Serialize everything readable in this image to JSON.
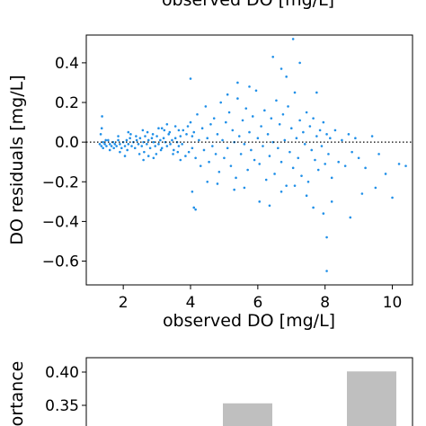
{
  "chart_data": [
    {
      "type": "scatter",
      "top_cut_label": "observed DO [mg/L]",
      "xlabel": "observed DO [mg/L]",
      "ylabel": "DO residuals [mg/L]",
      "xlim": [
        0.9,
        10.6
      ],
      "ylim": [
        -0.72,
        0.54
      ],
      "xticks": [
        2,
        4,
        6,
        8,
        10
      ],
      "xtick_labels": [
        "2",
        "4",
        "6",
        "8",
        "10"
      ],
      "yticks": [
        0.4,
        0.2,
        0.0,
        -0.2,
        -0.4,
        -0.6
      ],
      "ytick_labels": [
        "0.4",
        "0.2",
        "0.0",
        "−0.2",
        "−0.4",
        "−0.6"
      ],
      "reference_line": {
        "y": 0.0,
        "style": "dotted",
        "color": "#000000"
      },
      "marker_color": "#1f8fe8",
      "grid": false,
      "series": [
        {
          "points": [
            [
              1.3,
              -0.01
            ],
            [
              1.35,
              -0.02
            ],
            [
              1.4,
              0.0
            ],
            [
              1.45,
              -0.01
            ],
            [
              1.5,
              -0.02
            ],
            [
              1.55,
              0.01
            ],
            [
              1.6,
              -0.01
            ],
            [
              1.65,
              -0.02
            ],
            [
              1.7,
              0.0
            ],
            [
              1.75,
              -0.01
            ],
            [
              1.8,
              -0.02
            ],
            [
              1.85,
              0.01
            ],
            [
              1.9,
              -0.01
            ],
            [
              1.95,
              -0.03
            ],
            [
              2.0,
              0.0
            ],
            [
              2.05,
              -0.02
            ],
            [
              2.1,
              0.01
            ],
            [
              2.15,
              -0.01
            ],
            [
              2.2,
              0.02
            ],
            [
              2.25,
              -0.02
            ],
            [
              2.3,
              0.0
            ],
            [
              2.35,
              -0.03
            ],
            [
              2.4,
              0.01
            ],
            [
              2.45,
              -0.01
            ],
            [
              2.5,
              0.02
            ],
            [
              2.55,
              -0.02
            ],
            [
              2.6,
              0.0
            ],
            [
              2.65,
              0.03
            ],
            [
              2.7,
              -0.01
            ],
            [
              2.75,
              0.01
            ],
            [
              2.8,
              -0.03
            ],
            [
              2.85,
              0.02
            ],
            [
              2.9,
              0.0
            ],
            [
              2.95,
              -0.02
            ],
            [
              3.0,
              0.03
            ],
            [
              3.05,
              -0.01
            ],
            [
              3.1,
              0.01
            ],
            [
              3.15,
              -0.03
            ],
            [
              3.2,
              0.02
            ],
            [
              3.25,
              0.0
            ],
            [
              3.3,
              -0.02
            ],
            [
              3.35,
              0.04
            ],
            [
              3.4,
              -0.01
            ],
            [
              3.45,
              0.01
            ],
            [
              3.5,
              -0.04
            ],
            [
              3.55,
              0.02
            ],
            [
              3.6,
              0.0
            ],
            [
              3.65,
              -0.02
            ],
            [
              3.7,
              0.03
            ],
            [
              3.75,
              -0.01
            ],
            [
              1.48,
              0.01
            ],
            [
              1.72,
              -0.03
            ],
            [
              2.12,
              -0.04
            ],
            [
              2.38,
              0.03
            ],
            [
              2.62,
              -0.05
            ],
            [
              2.88,
              0.04
            ],
            [
              3.12,
              -0.04
            ],
            [
              3.38,
              0.05
            ],
            [
              3.62,
              -0.05
            ],
            [
              3.88,
              0.04
            ],
            [
              1.9,
              -0.05
            ],
            [
              2.22,
              0.04
            ],
            [
              2.48,
              -0.06
            ],
            [
              2.72,
              0.05
            ],
            [
              2.98,
              -0.06
            ],
            [
              3.22,
              0.06
            ],
            [
              3.48,
              -0.06
            ],
            [
              3.78,
              0.06
            ],
            [
              3.95,
              -0.05
            ],
            [
              4.05,
              0.03
            ],
            [
              1.33,
              0.04
            ],
            [
              1.6,
              -0.04
            ],
            [
              2.58,
              0.06
            ],
            [
              3.05,
              0.07
            ],
            [
              3.55,
              0.08
            ],
            [
              3.85,
              -0.07
            ],
            [
              2.05,
              -0.07
            ],
            [
              1.85,
              0.03
            ],
            [
              1.4,
              -0.03
            ],
            [
              2.9,
              -0.08
            ],
            [
              1.36,
              0.07
            ],
            [
              1.37,
              0.13
            ],
            [
              2.6,
              -0.09
            ],
            [
              3.3,
              0.09
            ],
            [
              3.7,
              -0.09
            ],
            [
              3.92,
              0.08
            ],
            [
              2.15,
              0.05
            ],
            [
              2.75,
              -0.07
            ],
            [
              3.15,
              0.07
            ],
            [
              3.65,
              0.06
            ],
            [
              4.0,
              0.1
            ],
            [
              4.05,
              -0.03
            ],
            [
              4.1,
              0.05
            ],
            [
              4.15,
              -0.08
            ],
            [
              4.2,
              0.14
            ],
            [
              4.25,
              0.01
            ],
            [
              4.3,
              -0.12
            ],
            [
              4.35,
              0.07
            ],
            [
              4.4,
              -0.04
            ],
            [
              4.45,
              0.18
            ],
            [
              4.5,
              0.02
            ],
            [
              4.55,
              -0.1
            ],
            [
              4.6,
              0.09
            ],
            [
              4.65,
              -0.02
            ],
            [
              4.7,
              0.12
            ],
            [
              4.75,
              -0.06
            ],
            [
              4.8,
              0.04
            ],
            [
              4.85,
              -0.15
            ],
            [
              4.9,
              0.2
            ],
            [
              4.95,
              0.01
            ],
            [
              5.0,
              -0.08
            ],
            [
              5.05,
              0.1
            ],
            [
              5.1,
              -0.03
            ],
            [
              5.15,
              0.15
            ],
            [
              5.2,
              -0.12
            ],
            [
              5.25,
              0.06
            ],
            [
              5.3,
              0.0
            ],
            [
              5.35,
              -0.18
            ],
            [
              5.4,
              0.22
            ],
            [
              5.45,
              0.03
            ],
            [
              5.5,
              -0.06
            ],
            [
              5.55,
              0.11
            ],
            [
              5.6,
              -0.01
            ],
            [
              5.65,
              0.17
            ],
            [
              5.7,
              -0.14
            ],
            [
              5.75,
              0.05
            ],
            [
              5.8,
              -0.04
            ],
            [
              5.85,
              0.13
            ],
            [
              5.9,
              -0.09
            ],
            [
              5.95,
              0.26
            ],
            [
              6.0,
              0.02
            ],
            [
              6.05,
              -0.11
            ],
            [
              6.1,
              0.08
            ],
            [
              6.15,
              -0.02
            ],
            [
              6.2,
              0.16
            ],
            [
              6.25,
              -0.19
            ],
            [
              6.3,
              0.04
            ],
            [
              6.35,
              -0.07
            ],
            [
              6.4,
              0.12
            ],
            [
              6.45,
              0.0
            ],
            [
              6.5,
              -0.16
            ],
            [
              6.55,
              0.21
            ],
            [
              6.6,
              -0.03
            ],
            [
              6.65,
              0.09
            ],
            [
              6.7,
              -0.1
            ],
            [
              6.75,
              0.14
            ],
            [
              6.8,
              0.01
            ],
            [
              6.85,
              -0.22
            ],
            [
              6.9,
              0.18
            ],
            [
              6.95,
              -0.05
            ],
            [
              7.0,
              0.07
            ],
            [
              7.05,
              -0.13
            ],
            [
              7.1,
              0.25
            ],
            [
              7.15,
              0.02
            ],
            [
              7.2,
              -0.08
            ],
            [
              7.25,
              0.11
            ],
            [
              7.3,
              -0.17
            ],
            [
              7.35,
              0.05
            ],
            [
              7.4,
              -0.01
            ],
            [
              7.45,
              0.15
            ],
            [
              7.5,
              -0.2
            ],
            [
              7.55,
              0.08
            ],
            [
              7.6,
              -0.04
            ],
            [
              7.65,
              0.12
            ],
            [
              7.7,
              -0.09
            ],
            [
              7.75,
              0.03
            ],
            [
              7.8,
              -0.14
            ],
            [
              7.85,
              0.06
            ],
            [
              7.9,
              -0.02
            ],
            [
              7.95,
              0.1
            ],
            [
              8.0,
              -0.11
            ],
            [
              8.05,
              0.04
            ],
            [
              8.1,
              -0.06
            ],
            [
              8.15,
              0.02
            ],
            [
              8.2,
              -0.18
            ],
            [
              8.3,
              0.06
            ],
            [
              8.4,
              -0.1
            ],
            [
              8.5,
              0.01
            ],
            [
              8.6,
              -0.12
            ],
            [
              8.7,
              0.04
            ],
            [
              8.8,
              -0.05
            ],
            [
              8.9,
              0.02
            ],
            [
              9.0,
              -0.08
            ],
            [
              9.2,
              -0.13
            ],
            [
              9.4,
              0.03
            ],
            [
              9.6,
              -0.06
            ],
            [
              9.8,
              -0.16
            ],
            [
              10.0,
              -0.28
            ],
            [
              10.2,
              -0.11
            ],
            [
              10.4,
              -0.12
            ],
            [
              4.1,
              -0.33
            ],
            [
              4.15,
              -0.34
            ],
            [
              4.05,
              -0.25
            ],
            [
              4.0,
              0.32
            ],
            [
              7.05,
              0.52
            ],
            [
              6.45,
              0.43
            ],
            [
              6.7,
              0.37
            ],
            [
              7.25,
              0.4
            ],
            [
              6.85,
              0.33
            ],
            [
              5.75,
              0.28
            ],
            [
              5.4,
              0.3
            ],
            [
              7.75,
              0.25
            ],
            [
              5.1,
              0.24
            ],
            [
              8.05,
              -0.65
            ],
            [
              8.05,
              -0.48
            ],
            [
              8.75,
              -0.38
            ],
            [
              6.05,
              -0.3
            ],
            [
              6.35,
              -0.32
            ],
            [
              7.65,
              -0.33
            ],
            [
              7.95,
              -0.36
            ],
            [
              8.2,
              -0.3
            ],
            [
              9.1,
              -0.26
            ],
            [
              9.5,
              -0.23
            ],
            [
              5.6,
              -0.23
            ],
            [
              5.3,
              -0.24
            ],
            [
              4.8,
              -0.21
            ],
            [
              4.5,
              -0.2
            ],
            [
              6.7,
              -0.25
            ],
            [
              7.45,
              -0.27
            ],
            [
              7.1,
              -0.22
            ]
          ]
        }
      ]
    },
    {
      "type": "bar",
      "ylabel_fragment": "ortance",
      "yticks": [
        0.4,
        0.35
      ],
      "ytick_labels": [
        "0.40",
        "0.35"
      ],
      "ylim": [
        0.33,
        0.43
      ],
      "bar_color": "#bfbfbf",
      "values": [
        0.353,
        0.401
      ]
    }
  ]
}
